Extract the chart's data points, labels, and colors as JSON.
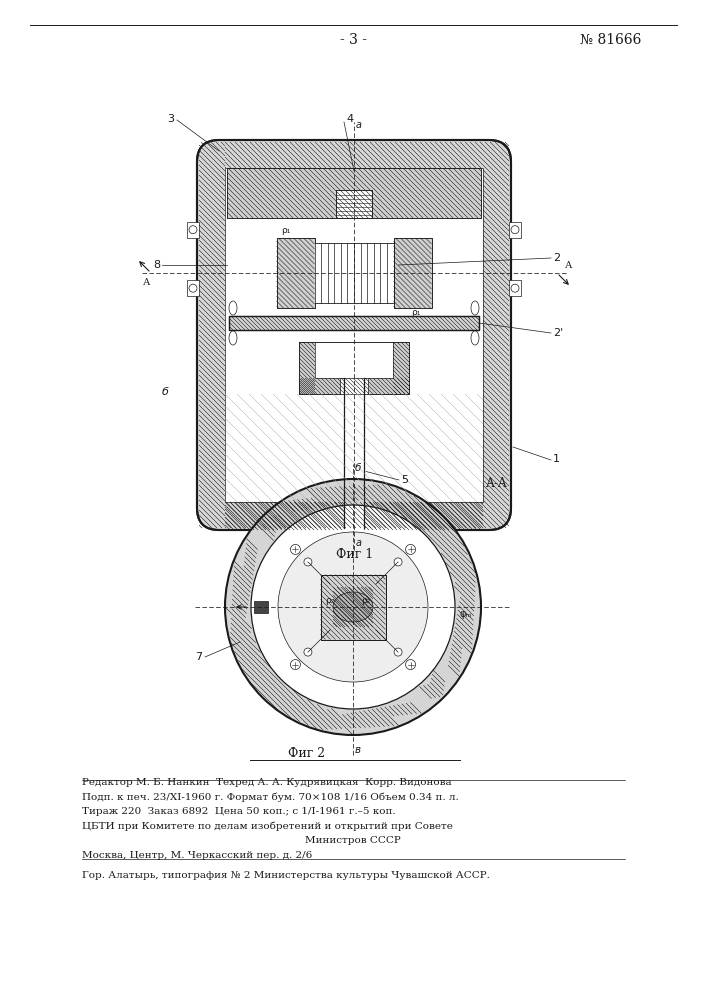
{
  "page_number": "- 3 -",
  "patent_number": "№ 81666",
  "fig1_label": "Фиг 1",
  "fig2_label": "Фиг 2",
  "section_label": "А-А",
  "editor_line": "Редактор М. Б. Нанкин  Техред А. А. Кудрявицкая  Корр. Видонова",
  "line2": "Подп. к печ. 23/XI-1960 г. Формат бум. 70×108 1/16 Объем 0.34 п. л.",
  "line3": "Тираж 220  Заказ 6892  Цена 50 коп.; с 1/I-1961 г.–5 коп.",
  "line4": "ЦБТИ при Комитете по делам изобретений и открытий при Совете",
  "line5": "Министров СССР",
  "line6": "Москва, Центр, М. Черкасский пер. д. 2/6",
  "line7": "Гор. Алатырь, типография № 2 Министерства культуры Чувашской АССР.",
  "bg_color": "#ffffff",
  "line_color": "#1a1a1a"
}
